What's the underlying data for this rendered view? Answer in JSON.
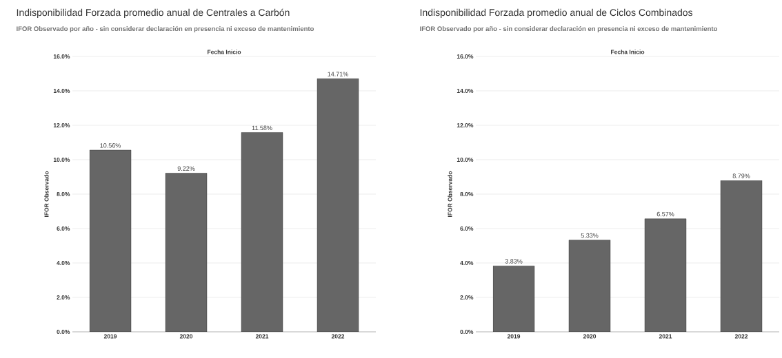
{
  "chart_data": [
    {
      "type": "bar",
      "title": "Indisponibilidad Forzada promedio anual de Centrales a Carbón",
      "subtitle": "IFOR Observado por año - sin considerar declaración en presencia ni exceso de mantenimiento",
      "xlabel": "Fecha Inicio",
      "ylabel": "IFOR Observado",
      "categories": [
        "2019",
        "2020",
        "2021",
        "2022"
      ],
      "values": [
        10.56,
        9.22,
        11.58,
        14.71
      ],
      "value_labels": [
        "10.56%",
        "9.22%",
        "11.58%",
        "14.71%"
      ],
      "color": "#666666",
      "ylim": [
        0,
        16
      ],
      "yticks": [
        {
          "value": 0,
          "label": "0.0%"
        },
        {
          "value": 2,
          "label": "2.0%"
        },
        {
          "value": 4,
          "label": "4.0%"
        },
        {
          "value": 6,
          "label": "6.0%"
        },
        {
          "value": 8,
          "label": "8.0%"
        },
        {
          "value": 10,
          "label": "10.0%"
        },
        {
          "value": 12,
          "label": "12.0%"
        },
        {
          "value": 14,
          "label": "14.0%"
        },
        {
          "value": 16,
          "label": "16.0%"
        }
      ],
      "grid": "y"
    },
    {
      "type": "bar",
      "title": "Indisponibilidad Forzada promedio anual de Ciclos Combinados",
      "subtitle": "IFOR Observado por año - sin considerar declaración en presencia ni exceso de mantenimiento",
      "xlabel": "Fecha Inicio",
      "ylabel": "IFOR Observado",
      "categories": [
        "2019",
        "2020",
        "2021",
        "2022"
      ],
      "values": [
        3.83,
        5.33,
        6.57,
        8.79
      ],
      "value_labels": [
        "3.83%",
        "5.33%",
        "6.57%",
        "8.79%"
      ],
      "color": "#666666",
      "ylim": [
        0,
        16
      ],
      "yticks": [
        {
          "value": 0,
          "label": "0.0%"
        },
        {
          "value": 2,
          "label": "2.0%"
        },
        {
          "value": 4,
          "label": "4.0%"
        },
        {
          "value": 6,
          "label": "6.0%"
        },
        {
          "value": 8,
          "label": "8.0%"
        },
        {
          "value": 10,
          "label": "10.0%"
        },
        {
          "value": 12,
          "label": "12.0%"
        },
        {
          "value": 14,
          "label": "14.0%"
        },
        {
          "value": 16,
          "label": "16.0%"
        }
      ],
      "grid": "y"
    }
  ]
}
